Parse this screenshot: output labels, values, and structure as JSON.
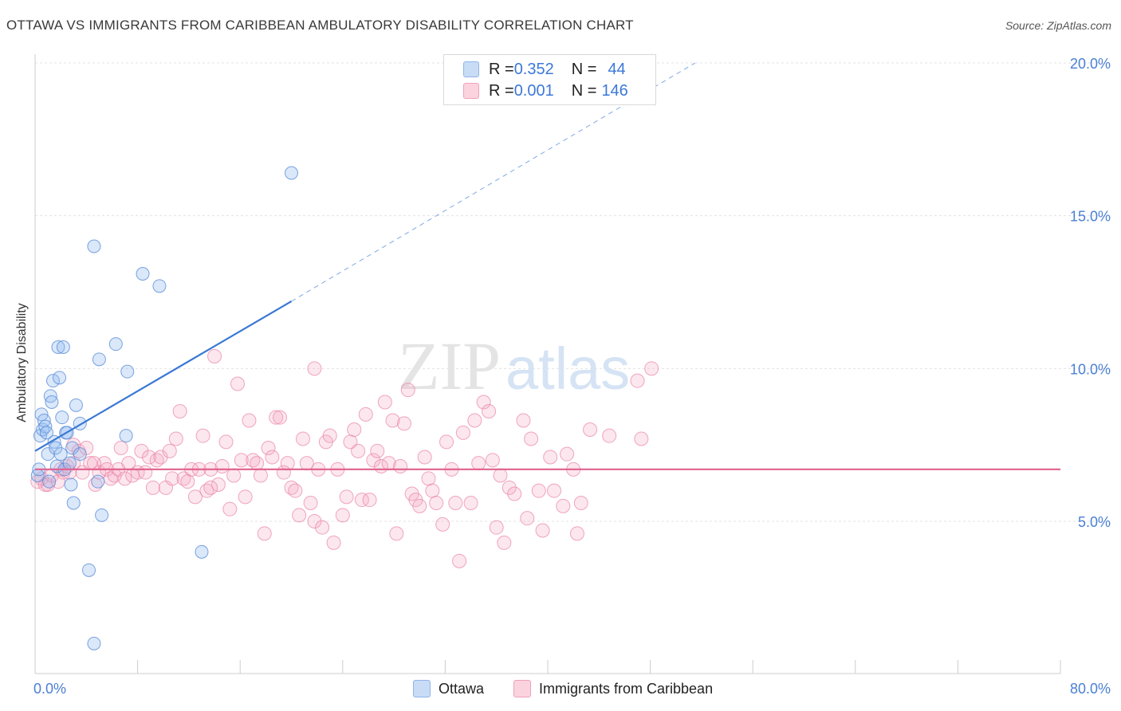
{
  "header": {
    "title": "OTTAWA VS IMMIGRANTS FROM CARIBBEAN AMBULATORY DISABILITY CORRELATION CHART",
    "source": "Source: ZipAtlas.com"
  },
  "watermark": {
    "part1": "ZIP",
    "part2": "atlas"
  },
  "legend": {
    "rows": [
      {
        "r_label": "R = ",
        "r_value": "0.352",
        "n_label": "N = ",
        "n_value": "44",
        "color": "#a9c8f0"
      },
      {
        "r_label": "R = ",
        "r_value": "0.001",
        "n_label": "N = ",
        "n_value": "146",
        "color": "#f6b8cb"
      }
    ]
  },
  "bottom_legend": {
    "series1": "Ottawa",
    "series2": "Immigrants from Caribbean"
  },
  "chart_data": {
    "type": "scatter",
    "title": "OTTAWA VS IMMIGRANTS FROM CARIBBEAN AMBULATORY DISABILITY CORRELATION CHART",
    "xlabel": "",
    "ylabel": "Ambulatory Disability",
    "xlim": [
      0,
      80
    ],
    "ylim": [
      0,
      21
    ],
    "x_tick_labels": [
      "0.0%",
      "80.0%"
    ],
    "y_tick_labels": [
      "5.0%",
      "10.0%",
      "15.0%",
      "20.0%"
    ],
    "y_ticks": [
      5,
      10,
      15,
      20
    ],
    "grid": true,
    "legend_position": "top-center",
    "colors": {
      "ottawa": "#6fa3e6",
      "caribbean": "#ef8fae",
      "ottawa_line": "#3a78d4",
      "caribbean_line": "#e0608e",
      "axis_text": "#4a7fd4"
    },
    "series": [
      {
        "name": "Ottawa",
        "R": 0.352,
        "N": 44,
        "trend": {
          "x": [
            0,
            20
          ],
          "y": [
            7.3,
            12.2
          ],
          "dashed_extension_to": [
            51.5,
            20.0
          ]
        },
        "points": [
          [
            0.2,
            6.5
          ],
          [
            0.3,
            6.7
          ],
          [
            0.4,
            7.8
          ],
          [
            0.5,
            8.5
          ],
          [
            0.6,
            8.0
          ],
          [
            0.7,
            8.3
          ],
          [
            0.8,
            8.1
          ],
          [
            0.9,
            7.9
          ],
          [
            1.0,
            7.2
          ],
          [
            1.1,
            6.3
          ],
          [
            1.2,
            9.1
          ],
          [
            1.3,
            8.9
          ],
          [
            1.4,
            9.6
          ],
          [
            1.5,
            7.6
          ],
          [
            1.6,
            7.4
          ],
          [
            1.7,
            6.8
          ],
          [
            1.8,
            10.7
          ],
          [
            1.9,
            9.7
          ],
          [
            2.0,
            7.2
          ],
          [
            2.1,
            8.4
          ],
          [
            2.2,
            10.7
          ],
          [
            2.3,
            6.7
          ],
          [
            2.4,
            7.9
          ],
          [
            2.5,
            7.9
          ],
          [
            2.7,
            6.9
          ],
          [
            2.8,
            6.2
          ],
          [
            2.9,
            7.4
          ],
          [
            3.0,
            5.6
          ],
          [
            3.2,
            8.8
          ],
          [
            3.5,
            8.2
          ],
          [
            3.5,
            7.2
          ],
          [
            4.2,
            3.4
          ],
          [
            4.6,
            14.0
          ],
          [
            4.9,
            6.3
          ],
          [
            5.0,
            10.3
          ],
          [
            5.2,
            5.2
          ],
          [
            6.3,
            10.8
          ],
          [
            7.1,
            7.8
          ],
          [
            7.2,
            9.9
          ],
          [
            8.4,
            13.1
          ],
          [
            9.7,
            12.7
          ],
          [
            13.0,
            4.0
          ],
          [
            20.0,
            16.4
          ],
          [
            4.6,
            1.0
          ]
        ]
      },
      {
        "name": "Immigrants from Caribbean",
        "R": 0.001,
        "N": 146,
        "trend": {
          "x": [
            0,
            80
          ],
          "y": [
            6.7,
            6.7
          ]
        },
        "points": [
          [
            0.2,
            6.3
          ],
          [
            0.5,
            6.4
          ],
          [
            0.8,
            6.2
          ],
          [
            1.0,
            6.2
          ],
          [
            1.3,
            6.5
          ],
          [
            1.8,
            6.3
          ],
          [
            2.0,
            6.7
          ],
          [
            2.2,
            6.6
          ],
          [
            2.5,
            6.8
          ],
          [
            2.7,
            6.6
          ],
          [
            3.0,
            6.9
          ],
          [
            3.0,
            7.5
          ],
          [
            3.4,
            7.3
          ],
          [
            3.7,
            6.6
          ],
          [
            4.0,
            7.4
          ],
          [
            4.3,
            6.9
          ],
          [
            4.7,
            6.2
          ],
          [
            5.0,
            6.6
          ],
          [
            5.4,
            6.9
          ],
          [
            5.6,
            6.7
          ],
          [
            5.9,
            6.4
          ],
          [
            6.2,
            6.5
          ],
          [
            6.5,
            6.7
          ],
          [
            6.7,
            7.4
          ],
          [
            7.0,
            6.4
          ],
          [
            7.3,
            6.9
          ],
          [
            7.6,
            6.5
          ],
          [
            8.0,
            6.6
          ],
          [
            8.3,
            7.3
          ],
          [
            8.6,
            6.6
          ],
          [
            8.9,
            7.1
          ],
          [
            9.2,
            6.1
          ],
          [
            9.5,
            7.0
          ],
          [
            9.8,
            7.1
          ],
          [
            10.2,
            6.1
          ],
          [
            10.5,
            7.3
          ],
          [
            10.7,
            6.4
          ],
          [
            11.0,
            7.7
          ],
          [
            11.3,
            8.6
          ],
          [
            11.6,
            6.4
          ],
          [
            11.9,
            6.3
          ],
          [
            12.2,
            6.7
          ],
          [
            12.5,
            5.8
          ],
          [
            12.8,
            6.7
          ],
          [
            13.1,
            7.8
          ],
          [
            13.4,
            6.0
          ],
          [
            13.7,
            6.7
          ],
          [
            14.0,
            10.4
          ],
          [
            14.3,
            6.2
          ],
          [
            14.6,
            6.8
          ],
          [
            14.9,
            7.6
          ],
          [
            15.2,
            5.4
          ],
          [
            15.5,
            6.5
          ],
          [
            15.8,
            9.5
          ],
          [
            16.1,
            7.0
          ],
          [
            16.4,
            5.8
          ],
          [
            16.7,
            8.3
          ],
          [
            17.0,
            7.0
          ],
          [
            17.3,
            6.9
          ],
          [
            17.6,
            6.5
          ],
          [
            17.9,
            4.6
          ],
          [
            18.2,
            7.4
          ],
          [
            18.5,
            7.1
          ],
          [
            18.8,
            8.4
          ],
          [
            19.1,
            8.4
          ],
          [
            19.4,
            6.6
          ],
          [
            19.7,
            6.9
          ],
          [
            20.0,
            6.1
          ],
          [
            20.3,
            6.0
          ],
          [
            20.6,
            5.2
          ],
          [
            20.9,
            7.7
          ],
          [
            21.2,
            6.9
          ],
          [
            21.5,
            5.6
          ],
          [
            21.8,
            5.0
          ],
          [
            22.1,
            6.7
          ],
          [
            22.4,
            4.8
          ],
          [
            22.7,
            7.6
          ],
          [
            23.0,
            7.8
          ],
          [
            23.3,
            4.3
          ],
          [
            23.6,
            6.7
          ],
          [
            24.0,
            5.2
          ],
          [
            24.3,
            5.8
          ],
          [
            24.6,
            7.6
          ],
          [
            24.9,
            8.0
          ],
          [
            25.2,
            7.3
          ],
          [
            25.5,
            5.7
          ],
          [
            25.8,
            8.5
          ],
          [
            26.1,
            5.7
          ],
          [
            26.4,
            7.0
          ],
          [
            26.7,
            7.3
          ],
          [
            27.0,
            6.8
          ],
          [
            27.3,
            8.9
          ],
          [
            27.6,
            6.9
          ],
          [
            27.9,
            8.3
          ],
          [
            28.2,
            4.6
          ],
          [
            28.5,
            6.8
          ],
          [
            28.8,
            8.2
          ],
          [
            29.1,
            9.3
          ],
          [
            29.4,
            5.9
          ],
          [
            29.7,
            5.7
          ],
          [
            30.0,
            5.5
          ],
          [
            30.4,
            7.1
          ],
          [
            30.7,
            6.4
          ],
          [
            31.0,
            6.0
          ],
          [
            31.3,
            5.6
          ],
          [
            31.8,
            4.9
          ],
          [
            32.1,
            7.6
          ],
          [
            32.5,
            6.7
          ],
          [
            32.8,
            5.6
          ],
          [
            33.1,
            3.7
          ],
          [
            33.4,
            7.9
          ],
          [
            34.0,
            5.6
          ],
          [
            34.3,
            8.3
          ],
          [
            34.6,
            6.9
          ],
          [
            35.0,
            8.9
          ],
          [
            35.4,
            8.6
          ],
          [
            35.7,
            7.0
          ],
          [
            36.0,
            4.8
          ],
          [
            36.3,
            6.5
          ],
          [
            36.6,
            4.3
          ],
          [
            37.0,
            6.1
          ],
          [
            37.4,
            5.9
          ],
          [
            38.1,
            8.3
          ],
          [
            38.4,
            5.1
          ],
          [
            38.7,
            7.7
          ],
          [
            39.3,
            6.0
          ],
          [
            39.6,
            4.7
          ],
          [
            40.2,
            7.1
          ],
          [
            40.5,
            6.0
          ],
          [
            41.2,
            5.5
          ],
          [
            41.5,
            7.2
          ],
          [
            42.0,
            6.7
          ],
          [
            42.3,
            4.6
          ],
          [
            42.6,
            5.6
          ],
          [
            43.3,
            8.0
          ],
          [
            44.8,
            7.8
          ],
          [
            47.0,
            9.6
          ],
          [
            47.3,
            7.7
          ],
          [
            48.1,
            10.0
          ],
          [
            4.6,
            6.9
          ],
          [
            13.7,
            6.1
          ],
          [
            21.8,
            10.0
          ]
        ]
      }
    ]
  }
}
